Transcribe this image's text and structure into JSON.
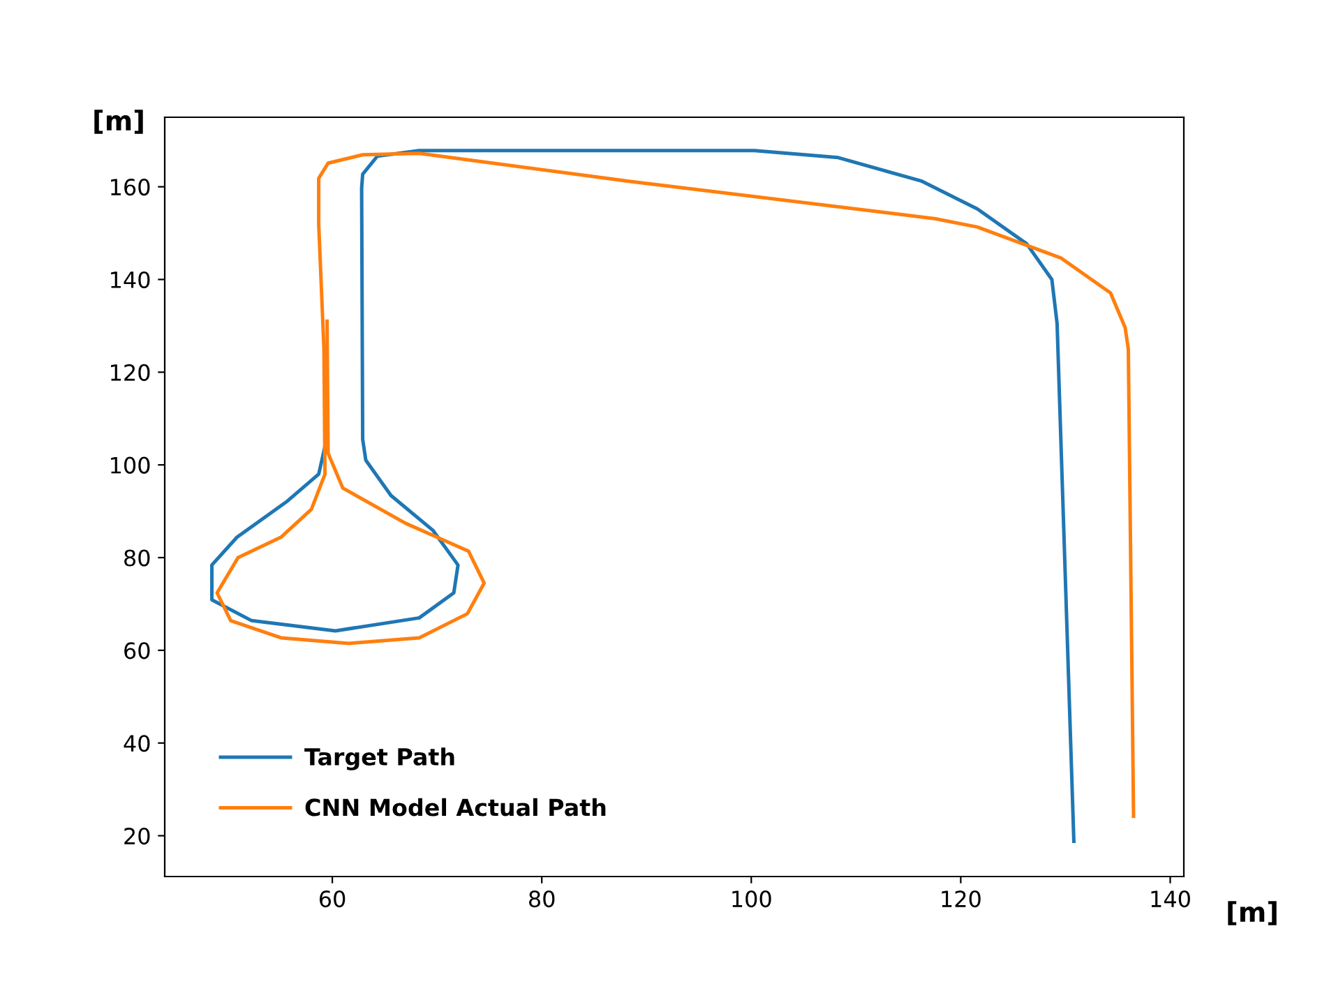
{
  "chart_data": {
    "type": "line",
    "xlabel": "[m]",
    "ylabel": "[m]",
    "xlim": [
      44,
      141.3
    ],
    "ylim": [
      11.2,
      175
    ],
    "xticks": [
      60,
      80,
      100,
      120,
      140
    ],
    "yticks": [
      20,
      40,
      60,
      80,
      100,
      120,
      140,
      160
    ],
    "grid": false,
    "legend": "bottom left",
    "marker": "none",
    "line_style": "solid",
    "series": [
      {
        "name": "Target Path",
        "color": "#1f77b4",
        "x": [
          130.8,
          129.2,
          128.7,
          126.3,
          121.6,
          116.3,
          108.3,
          100.3,
          92.3,
          68.3,
          64.3,
          62.9,
          62.8,
          62.9,
          63.2,
          65.6,
          69.6,
          72.0,
          71.6,
          68.3,
          60.3,
          52.3,
          48.5,
          48.5,
          50.9,
          55.6,
          58.7,
          59.3
        ],
        "values": [
          18.8,
          130.5,
          140,
          147.7,
          155.2,
          161.2,
          166.3,
          167.8,
          167.8,
          167.8,
          166.6,
          162.7,
          159.7,
          105.5,
          101,
          93.4,
          85.9,
          78.4,
          72.4,
          67,
          64.2,
          66.4,
          70.9,
          78.4,
          84.4,
          92,
          98,
          104
        ]
      },
      {
        "name": "CNN Model Actual Path",
        "color": "#ff7f0e",
        "x": [
          136.5,
          136.0,
          135.7,
          134.3,
          129.6,
          121.6,
          117.6,
          88.3,
          68.3,
          62.9,
          59.6,
          58.7,
          58.7,
          59.2,
          59.3,
          58.0,
          55.1,
          51.0,
          49.0,
          50.3,
          55.1,
          61.6,
          68.3,
          72.9,
          74.5,
          73.0,
          67.0,
          61.0,
          59.6,
          59.5
        ],
        "values": [
          24.2,
          125,
          129.6,
          137.1,
          144.6,
          151.3,
          153.1,
          161.2,
          167.2,
          166.9,
          165.1,
          161.8,
          152,
          125,
          98,
          90.4,
          84.4,
          80,
          72.4,
          66.4,
          62.7,
          61.5,
          62.7,
          67.9,
          74.5,
          81.4,
          87.4,
          95,
          102.5,
          131
        ]
      }
    ]
  }
}
